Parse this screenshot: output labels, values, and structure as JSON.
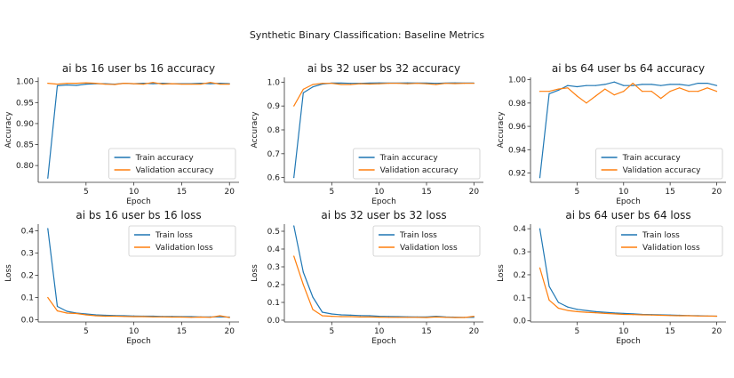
{
  "figure": {
    "suptitle": "Synthetic Binary Classification: Baseline Metrics"
  },
  "colors": {
    "train": "#1f77b4",
    "validation": "#ff7f0e",
    "axis": "#333333"
  },
  "chart_data": [
    {
      "type": "line",
      "title": "ai bs 16 user bs 16 accuracy",
      "xlabel": "Epoch",
      "ylabel": "Accuracy",
      "x": [
        1,
        2,
        3,
        4,
        5,
        6,
        7,
        8,
        9,
        10,
        11,
        12,
        13,
        14,
        15,
        16,
        17,
        18,
        19,
        20
      ],
      "xlim": [
        0,
        21
      ],
      "ylim": [
        0.76,
        1.01
      ],
      "xticks": [
        5,
        10,
        15,
        20
      ],
      "yticks": [
        0.8,
        0.85,
        0.9,
        0.95,
        1.0
      ],
      "ytick_labels": [
        "0.80",
        "0.85",
        "0.90",
        "0.95",
        "1.00"
      ],
      "legend_loc": "lower-right",
      "series": [
        {
          "name": "Train accuracy",
          "color": "#1f77b4",
          "values": [
            0.77,
            0.99,
            0.992,
            0.991,
            0.994,
            0.995,
            0.995,
            0.994,
            0.996,
            0.995,
            0.996,
            0.995,
            0.996,
            0.995,
            0.995,
            0.995,
            0.996,
            0.995,
            0.996,
            0.995
          ]
        },
        {
          "name": "Validation accuracy",
          "color": "#ff7f0e",
          "values": [
            0.996,
            0.994,
            0.996,
            0.996,
            0.997,
            0.996,
            0.994,
            0.993,
            0.996,
            0.995,
            0.994,
            0.998,
            0.994,
            0.995,
            0.994,
            0.994,
            0.994,
            0.998,
            0.994,
            0.994
          ]
        }
      ]
    },
    {
      "type": "line",
      "title": "ai bs 32 user bs 32 accuracy",
      "xlabel": "Epoch",
      "ylabel": "Accuracy",
      "x": [
        1,
        2,
        3,
        4,
        5,
        6,
        7,
        8,
        9,
        10,
        11,
        12,
        13,
        14,
        15,
        16,
        17,
        18,
        19,
        20
      ],
      "xlim": [
        0,
        21
      ],
      "ylim": [
        0.58,
        1.02
      ],
      "xticks": [
        5,
        10,
        15,
        20
      ],
      "yticks": [
        0.6,
        0.7,
        0.8,
        0.9,
        1.0
      ],
      "ytick_labels": [
        "0.6",
        "0.7",
        "0.8",
        "0.9",
        "1.0"
      ],
      "legend_loc": "lower-right",
      "series": [
        {
          "name": "Train accuracy",
          "color": "#1f77b4",
          "values": [
            0.6,
            0.955,
            0.98,
            0.992,
            0.996,
            0.996,
            0.995,
            0.995,
            0.996,
            0.997,
            0.996,
            0.996,
            0.997,
            0.996,
            0.996,
            0.995,
            0.996,
            0.997,
            0.996,
            0.996
          ]
        },
        {
          "name": "Validation accuracy",
          "color": "#ff7f0e",
          "values": [
            0.9,
            0.97,
            0.99,
            0.995,
            0.995,
            0.99,
            0.99,
            0.993,
            0.992,
            0.993,
            0.995,
            0.995,
            0.993,
            0.995,
            0.993,
            0.99,
            0.995,
            0.994,
            0.995,
            0.995
          ]
        }
      ]
    },
    {
      "type": "line",
      "title": "ai bs 64 user bs 64 accuracy",
      "xlabel": "Epoch",
      "ylabel": "Accuracy",
      "x": [
        1,
        2,
        3,
        4,
        5,
        6,
        7,
        8,
        9,
        10,
        11,
        12,
        13,
        14,
        15,
        16,
        17,
        18,
        19,
        20
      ],
      "xlim": [
        0,
        21
      ],
      "ylim": [
        0.912,
        1.002
      ],
      "xticks": [
        5,
        10,
        15,
        20
      ],
      "yticks": [
        0.92,
        0.94,
        0.96,
        0.98,
        1.0
      ],
      "ytick_labels": [
        "0.92",
        "0.94",
        "0.96",
        "0.98",
        "1.00"
      ],
      "legend_loc": "lower-right",
      "series": [
        {
          "name": "Train accuracy",
          "color": "#1f77b4",
          "values": [
            0.916,
            0.988,
            0.991,
            0.995,
            0.994,
            0.995,
            0.995,
            0.996,
            0.998,
            0.995,
            0.995,
            0.996,
            0.996,
            0.995,
            0.996,
            0.996,
            0.995,
            0.997,
            0.997,
            0.995
          ]
        },
        {
          "name": "Validation accuracy",
          "color": "#ff7f0e",
          "values": [
            0.99,
            0.99,
            0.992,
            0.993,
            0.986,
            0.98,
            0.986,
            0.992,
            0.987,
            0.99,
            0.997,
            0.99,
            0.99,
            0.984,
            0.99,
            0.993,
            0.99,
            0.99,
            0.993,
            0.99
          ]
        }
      ]
    },
    {
      "type": "line",
      "title": "ai bs 16 user bs 16 loss",
      "xlabel": "Epoch",
      "ylabel": "Loss",
      "x": [
        1,
        2,
        3,
        4,
        5,
        6,
        7,
        8,
        9,
        10,
        11,
        12,
        13,
        14,
        15,
        16,
        17,
        18,
        19,
        20
      ],
      "xlim": [
        0,
        21
      ],
      "ylim": [
        -0.01,
        0.43
      ],
      "xticks": [
        5,
        10,
        15,
        20
      ],
      "yticks": [
        0.0,
        0.1,
        0.2,
        0.3,
        0.4
      ],
      "ytick_labels": [
        "0.0",
        "0.1",
        "0.2",
        "0.3",
        "0.4"
      ],
      "legend_loc": "upper-right",
      "series": [
        {
          "name": "Train loss",
          "color": "#1f77b4",
          "values": [
            0.41,
            0.06,
            0.038,
            0.03,
            0.026,
            0.022,
            0.02,
            0.019,
            0.018,
            0.017,
            0.016,
            0.016,
            0.015,
            0.015,
            0.014,
            0.014,
            0.013,
            0.013,
            0.013,
            0.012
          ]
        },
        {
          "name": "Validation loss",
          "color": "#ff7f0e",
          "values": [
            0.1,
            0.04,
            0.03,
            0.028,
            0.022,
            0.018,
            0.016,
            0.016,
            0.015,
            0.014,
            0.014,
            0.013,
            0.013,
            0.012,
            0.012,
            0.011,
            0.012,
            0.011,
            0.018,
            0.01
          ]
        }
      ]
    },
    {
      "type": "line",
      "title": "ai bs 32 user bs 32 loss",
      "xlabel": "Epoch",
      "ylabel": "Loss",
      "x": [
        1,
        2,
        3,
        4,
        5,
        6,
        7,
        8,
        9,
        10,
        11,
        12,
        13,
        14,
        15,
        16,
        17,
        18,
        19,
        20
      ],
      "xlim": [
        0,
        21
      ],
      "ylim": [
        -0.01,
        0.54
      ],
      "xticks": [
        5,
        10,
        15,
        20
      ],
      "yticks": [
        0.0,
        0.1,
        0.2,
        0.3,
        0.4,
        0.5
      ],
      "ytick_labels": [
        "0.0",
        "0.1",
        "0.2",
        "0.3",
        "0.4",
        "0.5"
      ],
      "legend_loc": "upper-right",
      "series": [
        {
          "name": "Train loss",
          "color": "#1f77b4",
          "values": [
            0.53,
            0.27,
            0.13,
            0.045,
            0.035,
            0.03,
            0.028,
            0.026,
            0.025,
            0.022,
            0.021,
            0.02,
            0.019,
            0.018,
            0.018,
            0.022,
            0.018,
            0.017,
            0.016,
            0.016
          ]
        },
        {
          "name": "Validation loss",
          "color": "#ff7f0e",
          "values": [
            0.36,
            0.2,
            0.06,
            0.025,
            0.022,
            0.02,
            0.02,
            0.018,
            0.018,
            0.017,
            0.016,
            0.016,
            0.016,
            0.016,
            0.015,
            0.018,
            0.016,
            0.015,
            0.015,
            0.022
          ]
        }
      ]
    },
    {
      "type": "line",
      "title": "ai bs 64 user bs 64 loss",
      "xlabel": "Epoch",
      "ylabel": "Loss",
      "x": [
        1,
        2,
        3,
        4,
        5,
        6,
        7,
        8,
        9,
        10,
        11,
        12,
        13,
        14,
        15,
        16,
        17,
        18,
        19,
        20
      ],
      "xlim": [
        0,
        21
      ],
      "ylim": [
        -0.005,
        0.42
      ],
      "xticks": [
        5,
        10,
        15,
        20
      ],
      "yticks": [
        0.0,
        0.1,
        0.2,
        0.3,
        0.4
      ],
      "ytick_labels": [
        "0.0",
        "0.1",
        "0.2",
        "0.3",
        "0.4"
      ],
      "legend_loc": "upper-right",
      "series": [
        {
          "name": "Train loss",
          "color": "#1f77b4",
          "values": [
            0.4,
            0.15,
            0.08,
            0.06,
            0.05,
            0.045,
            0.04,
            0.037,
            0.034,
            0.032,
            0.03,
            0.028,
            0.027,
            0.026,
            0.025,
            0.024,
            0.023,
            0.022,
            0.021,
            0.02
          ]
        },
        {
          "name": "Validation loss",
          "color": "#ff7f0e",
          "values": [
            0.23,
            0.09,
            0.055,
            0.045,
            0.04,
            0.037,
            0.035,
            0.032,
            0.03,
            0.028,
            0.027,
            0.026,
            0.025,
            0.024,
            0.023,
            0.022,
            0.022,
            0.021,
            0.021,
            0.02
          ]
        }
      ]
    }
  ]
}
